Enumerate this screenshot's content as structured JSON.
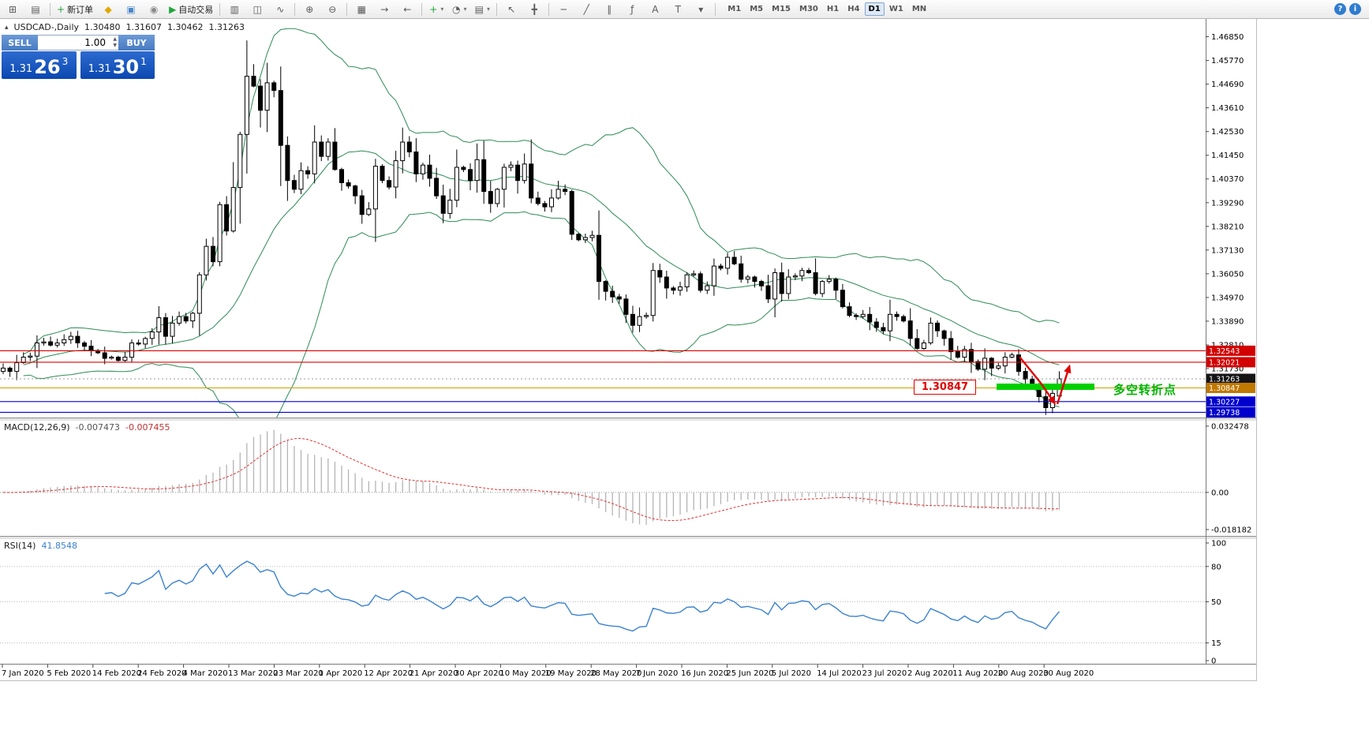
{
  "toolbar": {
    "items": [
      {
        "name": "new-chart",
        "glyph": "⊞"
      },
      {
        "name": "profiles",
        "glyph": "▤"
      },
      {
        "sep": true
      },
      {
        "name": "new-order",
        "glyph": "+",
        "glyph_color": "#2e9e3f",
        "label": "新订单"
      },
      {
        "name": "mql5-community",
        "glyph": "◆",
        "glyph_color": "#e0a800"
      },
      {
        "name": "data-window",
        "glyph": "▣",
        "glyph_color": "#4a86c8"
      },
      {
        "name": "strategy-tester",
        "glyph": "◉",
        "glyph_color": "#8a8a8a"
      },
      {
        "name": "auto-trading",
        "glyph": "▶",
        "glyph_color": "#21a63c",
        "label": "自动交易"
      },
      {
        "sep": true
      },
      {
        "name": "bar-chart",
        "glyph": "▥"
      },
      {
        "name": "candlestick-chart",
        "glyph": "◫"
      },
      {
        "name": "line-chart",
        "glyph": "∿"
      },
      {
        "sep": true
      },
      {
        "name": "zoom-in",
        "glyph": "⊕"
      },
      {
        "name": "zoom-out",
        "glyph": "⊖"
      },
      {
        "sep": true
      },
      {
        "name": "tile-windows",
        "glyph": "▦"
      },
      {
        "name": "auto-scroll",
        "glyph": "→"
      },
      {
        "name": "chart-shift",
        "glyph": "←"
      },
      {
        "sep": true
      },
      {
        "name": "indicators",
        "glyph": "+",
        "glyph_color": "#21a63c",
        "caret": true
      },
      {
        "name": "periods",
        "glyph": "◔",
        "caret": true
      },
      {
        "name": "templates",
        "glyph": "▤",
        "caret": true
      },
      {
        "sep": true
      },
      {
        "name": "cursor",
        "glyph": "↖"
      },
      {
        "name": "crosshair",
        "glyph": "╋"
      },
      {
        "sep": true
      },
      {
        "name": "horizontal-line",
        "glyph": "─"
      },
      {
        "name": "trendline",
        "glyph": "╱"
      },
      {
        "name": "equidistant-channel",
        "glyph": "∥"
      },
      {
        "name": "fibonacci-retracement",
        "glyph": "ƒ"
      },
      {
        "name": "text",
        "glyph": "A"
      },
      {
        "name": "text-label",
        "glyph": "T"
      },
      {
        "name": "arrows-list",
        "glyph": "▾"
      },
      {
        "sep": true
      }
    ],
    "timeframes": [
      "M1",
      "M5",
      "M15",
      "M30",
      "H1",
      "H4",
      "D1",
      "W1",
      "MN"
    ],
    "active_timeframe": "D1",
    "right_icons": [
      {
        "name": "help",
        "glyph": "?"
      },
      {
        "name": "quick-search",
        "glyph": "i"
      }
    ]
  },
  "chart_header": {
    "collapse_glyph": "▴",
    "symbol_period": "USDCAD-,Daily",
    "open": "1.30480",
    "high": "1.31607",
    "low": "1.30462",
    "close": "1.31263"
  },
  "one_click": {
    "sell_label": "SELL",
    "buy_label": "BUY",
    "volume": "1.00",
    "sell_small": "1.31",
    "sell_big": "26",
    "sell_sup": "3",
    "buy_small": "1.31",
    "buy_big": "30",
    "buy_sup": "1"
  },
  "price_axis": {
    "ticks": [
      "1.46850",
      "1.45770",
      "1.44690",
      "1.43610",
      "1.42530",
      "1.41450",
      "1.40370",
      "1.39290",
      "1.38210",
      "1.37130",
      "1.36050",
      "1.34970",
      "1.33890",
      "1.32810",
      "1.31730"
    ],
    "badges": [
      {
        "text": "1.32543",
        "price": 1.32543,
        "color": "#d20000"
      },
      {
        "text": "1.32021",
        "price": 1.32021,
        "color": "#d20000"
      },
      {
        "text": "1.31263",
        "price": 1.31263,
        "color": "#151515"
      },
      {
        "text": "1.30847",
        "price": 1.30847,
        "color": "#c07800"
      },
      {
        "text": "1.30227",
        "price": 1.30227,
        "color": "#0000cd"
      },
      {
        "text": "1.29738",
        "price": 1.29738,
        "color": "#0000cd"
      }
    ]
  },
  "chart_data": {
    "type": "candlestick",
    "symbol": "USDCAD-",
    "period": "Daily",
    "x_axis_labels": [
      "7 Jan 2020",
      "5 Feb 2020",
      "14 Feb 2020",
      "24 Feb 2020",
      "4 Mar 2020",
      "13 Mar 2020",
      "23 Mar 2020",
      "1 Apr 2020",
      "12 Apr 2020",
      "21 Apr 2020",
      "30 Apr 2020",
      "10 May 2020",
      "19 May 2020",
      "28 May 2020",
      "7 Jun 2020",
      "16 Jun 2020",
      "25 Jun 2020",
      "5 Jul 2020",
      "14 Jul 2020",
      "23 Jul 2020",
      "2 Aug 2020",
      "11 Aug 2020",
      "20 Aug 2020",
      "30 Aug 2020"
    ],
    "y_axis_range": {
      "min": 1.295,
      "max": 1.4766
    },
    "closes": [
      1.3175,
      1.316,
      1.32,
      1.3225,
      1.323,
      1.329,
      1.3295,
      1.328,
      1.329,
      1.3305,
      1.332,
      1.329,
      1.3275,
      1.3255,
      1.3245,
      1.322,
      1.3225,
      1.321,
      1.3225,
      1.329,
      1.3285,
      1.331,
      1.334,
      1.3405,
      1.332,
      1.338,
      1.341,
      1.339,
      1.3425,
      1.36,
      1.373,
      1.366,
      1.392,
      1.38,
      1.3998,
      1.424,
      1.4505,
      1.446,
      1.435,
      1.4475,
      1.444,
      1.419,
      1.403,
      1.399,
      1.4075,
      1.406,
      1.4205,
      1.414,
      1.4205,
      1.408,
      1.402,
      1.4005,
      1.396,
      1.3875,
      1.39,
      1.4095,
      1.403,
      1.4,
      1.412,
      1.4205,
      1.416,
      1.406,
      1.41,
      1.404,
      1.396,
      1.388,
      1.394,
      1.409,
      1.408,
      1.403,
      1.4125,
      1.398,
      1.3925,
      1.399,
      1.409,
      1.41,
      1.403,
      1.4105,
      1.395,
      1.3925,
      1.391,
      1.395,
      1.399,
      1.398,
      1.3785,
      1.376,
      1.377,
      1.378,
      1.357,
      1.3525,
      1.35,
      1.349,
      1.342,
      1.337,
      1.341,
      1.3415,
      1.362,
      1.359,
      1.354,
      1.353,
      1.3545,
      1.36,
      1.3605,
      1.353,
      1.355,
      1.364,
      1.363,
      1.368,
      1.365,
      1.358,
      1.359,
      1.357,
      1.355,
      1.349,
      1.361,
      1.3515,
      1.359,
      1.3595,
      1.362,
      1.361,
      1.3515,
      1.357,
      1.358,
      1.353,
      1.3455,
      1.3415,
      1.341,
      1.342,
      1.3385,
      1.336,
      1.3345,
      1.342,
      1.341,
      1.339,
      1.331,
      1.3265,
      1.329,
      1.338,
      1.3345,
      1.331,
      1.325,
      1.3225,
      1.326,
      1.3205,
      1.317,
      1.322,
      1.3175,
      1.3185,
      1.3225,
      1.3235,
      1.316,
      1.3125,
      1.31,
      1.3045,
      1.2995,
      1.306,
      1.31263
    ],
    "last_candle": {
      "open": 1.3048,
      "high": 1.31607,
      "low": 1.30462,
      "close": 1.31263
    },
    "wick_overrides": [
      {
        "index": 36,
        "high": 1.4668
      },
      {
        "index": 37,
        "high": 1.456
      },
      {
        "index": 154,
        "low": 1.2962
      }
    ],
    "bollinger": {
      "period": 20,
      "deviation": 2,
      "color": "#2e8b57"
    },
    "horizontal_lines": [
      {
        "price": 1.32543,
        "color": "#e00000"
      },
      {
        "price": 1.32021,
        "color": "#e00000"
      },
      {
        "price": 1.30847,
        "color": "#c8a000"
      },
      {
        "price": 1.30227,
        "color": "#0000d2"
      },
      {
        "price": 1.29738,
        "color": "#0000d2"
      }
    ],
    "bid_price": 1.31263,
    "macd": {
      "header": "MACD(12,26,9)",
      "fast": 12,
      "slow": 26,
      "signal": 9,
      "value_main": "-0.007473",
      "value_signal": "-0.007455",
      "axis_labels": [
        {
          "text": "0.032478",
          "value": 0.032478
        },
        {
          "text": "0.00",
          "value": 0
        },
        {
          "text": "-0.018182",
          "value": -0.018182
        }
      ],
      "range": {
        "min": -0.019,
        "max": 0.034
      },
      "histogram_color": "#b4b4b4",
      "signal_color": "#e03030"
    },
    "rsi": {
      "header": "RSI(14)",
      "period": 14,
      "value": "41.8548",
      "axis_labels": [
        {
          "text": "100",
          "value": 100
        },
        {
          "text": "80",
          "value": 80
        },
        {
          "text": "50",
          "value": 50
        },
        {
          "text": "15",
          "value": 15
        },
        {
          "text": "0",
          "value": 0
        }
      ],
      "levels": [
        80,
        50,
        15
      ],
      "color": "#3b82d0"
    },
    "annotations": {
      "price_label_box": {
        "text": "1.30847",
        "color": "#e00000"
      },
      "support_zone_color": "#00d000",
      "turning_point_text": "多空转折点",
      "turning_point_color": "#00b400",
      "arrow_color": "#e00000"
    }
  }
}
